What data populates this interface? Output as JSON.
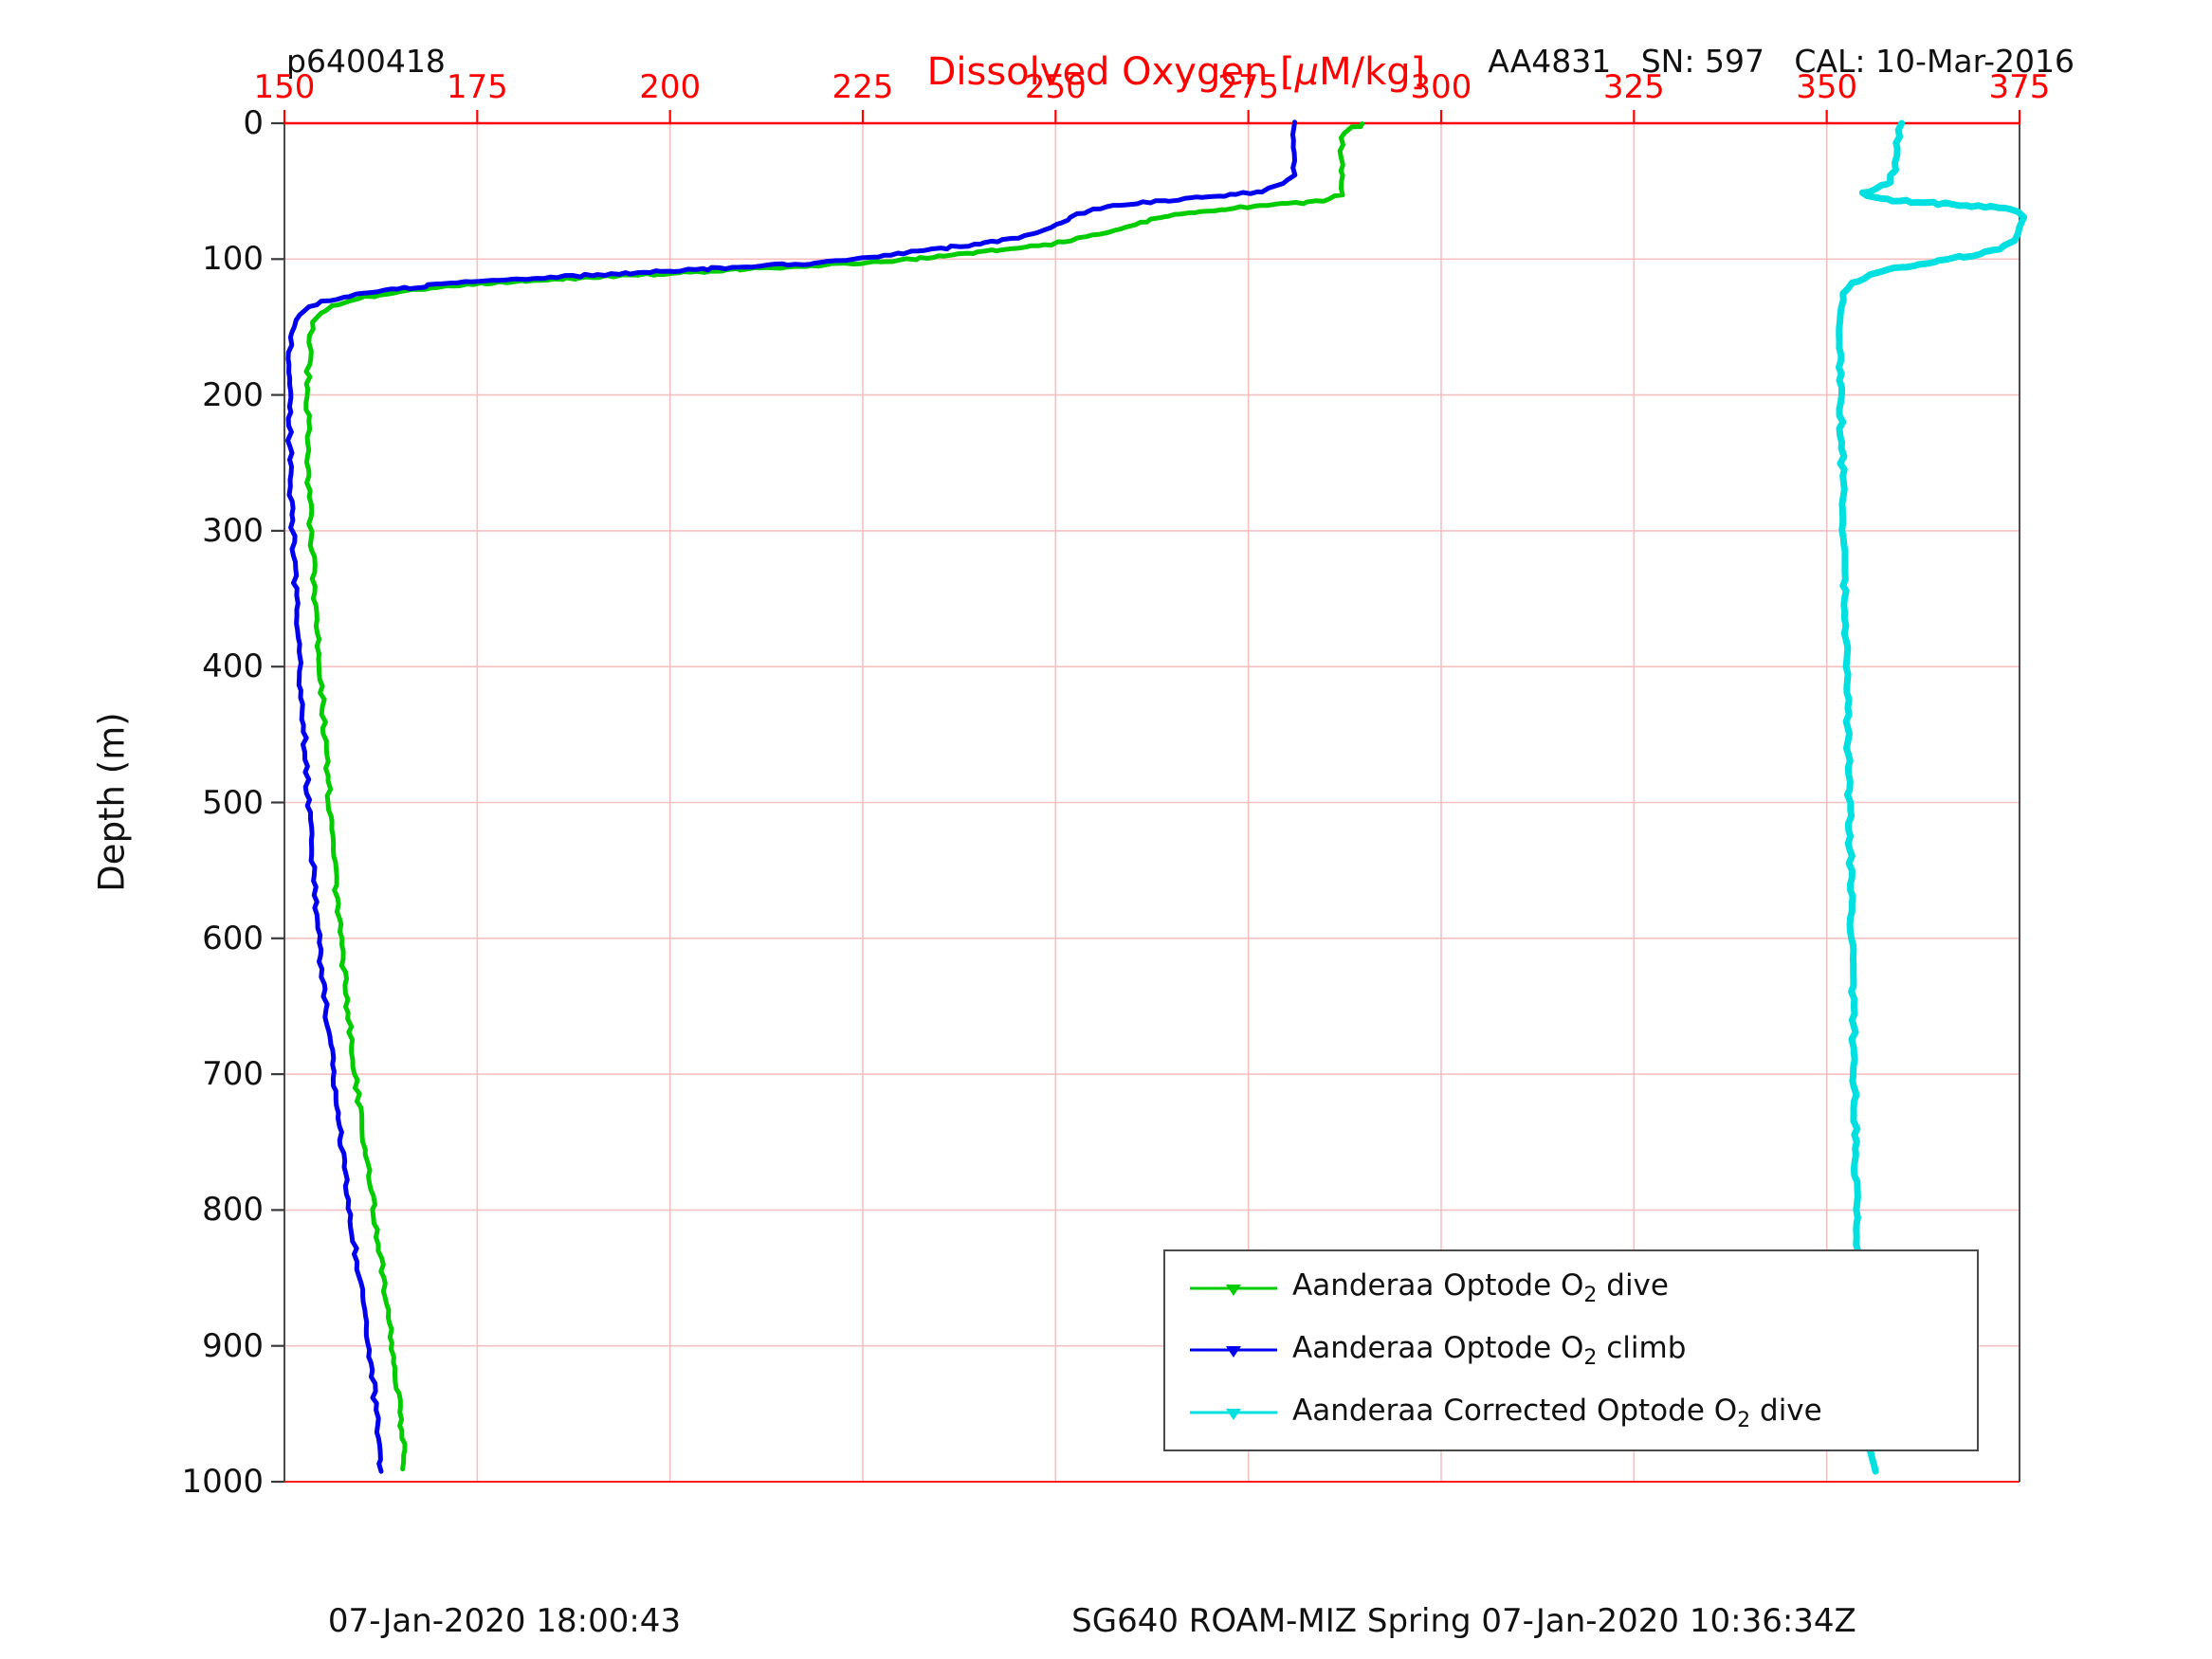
{
  "header": {
    "dive_id": "p6400418",
    "sensor_info": "AA4831   SN: 597   CAL: 10-Mar-2016",
    "title_parts": {
      "pre": "Dissolved Oxygen [",
      "mu": "μ",
      "post": "M/kg]"
    }
  },
  "footer": {
    "left": "07-Jan-2020 18:00:43",
    "right": "SG640 ROAM-MIZ Spring 07-Jan-2020 10:36:34Z"
  },
  "colors": {
    "axis_x": "#ff0000",
    "axis_y": "#3a3a3a",
    "grid": "#f5c0c0",
    "dive": "#00cc00",
    "climb": "#0000ee",
    "corrected": "#00e0e0"
  },
  "chart_data": {
    "type": "line",
    "title": "Dissolved Oxygen [μM/kg]",
    "xlabel": "Dissolved Oxygen [μM/kg]",
    "ylabel": "Depth (m)",
    "xlim": [
      150,
      375
    ],
    "ylim": [
      0,
      1000
    ],
    "y_axis_inverted": true,
    "x_axis_location": "top",
    "x_ticks": [
      150,
      175,
      200,
      225,
      250,
      275,
      300,
      325,
      350,
      375
    ],
    "y_ticks": [
      0,
      100,
      200,
      300,
      400,
      500,
      600,
      700,
      800,
      900,
      1000
    ],
    "grid": true,
    "legend_position": "inside-bottom-right",
    "series": [
      {
        "name": "Aanderaa Optode O2 dive",
        "label_parts": {
          "pre": "Aanderaa Optode O",
          "sub": "2",
          "post": " dive"
        },
        "color": "#00cc00",
        "marker": "triangle-down",
        "points": [
          [
            290,
            0
          ],
          [
            288,
            5
          ],
          [
            287,
            11
          ],
          [
            287,
            30
          ],
          [
            287,
            52
          ],
          [
            285.5,
            56
          ],
          [
            281,
            59
          ],
          [
            274,
            62
          ],
          [
            268,
            65
          ],
          [
            264,
            69
          ],
          [
            261,
            73
          ],
          [
            258.5,
            77
          ],
          [
            256,
            81
          ],
          [
            253,
            85
          ],
          [
            249.5,
            89
          ],
          [
            245,
            92
          ],
          [
            240,
            95
          ],
          [
            235,
            98
          ],
          [
            230,
            101
          ],
          [
            221,
            104
          ],
          [
            211,
            107
          ],
          [
            201,
            110
          ],
          [
            191,
            113
          ],
          [
            181.5,
            116
          ],
          [
            173.5,
            119
          ],
          [
            166.5,
            123
          ],
          [
            161.5,
            127
          ],
          [
            158,
            131
          ],
          [
            156,
            135
          ],
          [
            154.6,
            140
          ],
          [
            153.9,
            147
          ],
          [
            153.4,
            157
          ],
          [
            153.1,
            178
          ],
          [
            153,
            215
          ],
          [
            153.1,
            255
          ],
          [
            153.4,
            295
          ],
          [
            153.8,
            335
          ],
          [
            154.3,
            375
          ],
          [
            154.8,
            415
          ],
          [
            155.3,
            455
          ],
          [
            155.8,
            495
          ],
          [
            156.3,
            535
          ],
          [
            156.9,
            575
          ],
          [
            157.5,
            615
          ],
          [
            158.3,
            655
          ],
          [
            159.1,
            695
          ],
          [
            160,
            735
          ],
          [
            161,
            775
          ],
          [
            162,
            815
          ],
          [
            163,
            855
          ],
          [
            164,
            898
          ],
          [
            164.8,
            940
          ],
          [
            165.4,
            972
          ],
          [
            165.6,
            990
          ]
        ]
      },
      {
        "name": "Aanderaa Optode O2 climb",
        "label_parts": {
          "pre": "Aanderaa Optode O",
          "sub": "2",
          "post": " climb"
        },
        "color": "#0000ee",
        "marker": "triangle-down",
        "points": [
          [
            281,
            0
          ],
          [
            281,
            22
          ],
          [
            281,
            38
          ],
          [
            279.5,
            45
          ],
          [
            277,
            50
          ],
          [
            271,
            54
          ],
          [
            264,
            57
          ],
          [
            258.5,
            60
          ],
          [
            255,
            63
          ],
          [
            252.8,
            67
          ],
          [
            251.5,
            71
          ],
          [
            250.3,
            75
          ],
          [
            248.5,
            79
          ],
          [
            246,
            83
          ],
          [
            242.5,
            87
          ],
          [
            238.5,
            90
          ],
          [
            234,
            93
          ],
          [
            229.5,
            96
          ],
          [
            225.5,
            99
          ],
          [
            218,
            103
          ],
          [
            209,
            106
          ],
          [
            199,
            109
          ],
          [
            189,
            112
          ],
          [
            179.5,
            115
          ],
          [
            171.5,
            118
          ],
          [
            164.5,
            122
          ],
          [
            159.5,
            126
          ],
          [
            155.8,
            130
          ],
          [
            153.2,
            135
          ],
          [
            151.9,
            141
          ],
          [
            151.2,
            149
          ],
          [
            150.8,
            163
          ],
          [
            150.6,
            198
          ],
          [
            150.7,
            238
          ],
          [
            150.9,
            278
          ],
          [
            151.2,
            318
          ],
          [
            151.6,
            358
          ],
          [
            152,
            398
          ],
          [
            152.4,
            438
          ],
          [
            152.9,
            478
          ],
          [
            153.3,
            518
          ],
          [
            153.8,
            558
          ],
          [
            154.4,
            598
          ],
          [
            155.1,
            638
          ],
          [
            155.9,
            678
          ],
          [
            156.7,
            718
          ],
          [
            157.5,
            758
          ],
          [
            158.4,
            798
          ],
          [
            159.4,
            838
          ],
          [
            160.4,
            878
          ],
          [
            161.3,
            918
          ],
          [
            162,
            953
          ],
          [
            162.4,
            983
          ],
          [
            162.5,
            992
          ]
        ]
      },
      {
        "name": "Aanderaa Corrected Optode O2 dive",
        "label_parts": {
          "pre": "Aanderaa Corrected Optode O",
          "sub": "2",
          "post": " dive"
        },
        "color": "#00e0e0",
        "marker": "triangle-down",
        "points": [
          [
            359.5,
            0
          ],
          [
            359.2,
            14
          ],
          [
            358.8,
            34
          ],
          [
            358.2,
            43
          ],
          [
            356.2,
            48
          ],
          [
            354.6,
            52
          ],
          [
            356.2,
            55
          ],
          [
            361,
            58
          ],
          [
            367,
            60
          ],
          [
            372,
            62
          ],
          [
            374.6,
            65
          ],
          [
            375.3,
            70
          ],
          [
            375.1,
            76
          ],
          [
            374.6,
            82
          ],
          [
            374.1,
            87
          ],
          [
            372.4,
            92
          ],
          [
            368.8,
            97
          ],
          [
            363.8,
            102
          ],
          [
            358.8,
            107
          ],
          [
            355.4,
            112
          ],
          [
            353.4,
            118
          ],
          [
            352.3,
            126
          ],
          [
            351.8,
            136
          ],
          [
            351.6,
            150
          ],
          [
            351.7,
            180
          ],
          [
            351.9,
            220
          ],
          [
            352.1,
            270
          ],
          [
            352.3,
            320
          ],
          [
            352.5,
            380
          ],
          [
            352.7,
            440
          ],
          [
            352.9,
            500
          ],
          [
            353.1,
            560
          ],
          [
            353.3,
            620
          ],
          [
            353.5,
            680
          ],
          [
            353.7,
            740
          ],
          [
            353.9,
            800
          ],
          [
            354.2,
            860
          ],
          [
            354.5,
            910
          ],
          [
            354.9,
            950
          ],
          [
            355.4,
            975
          ],
          [
            356.1,
            988
          ],
          [
            356.4,
            992
          ]
        ]
      }
    ]
  }
}
